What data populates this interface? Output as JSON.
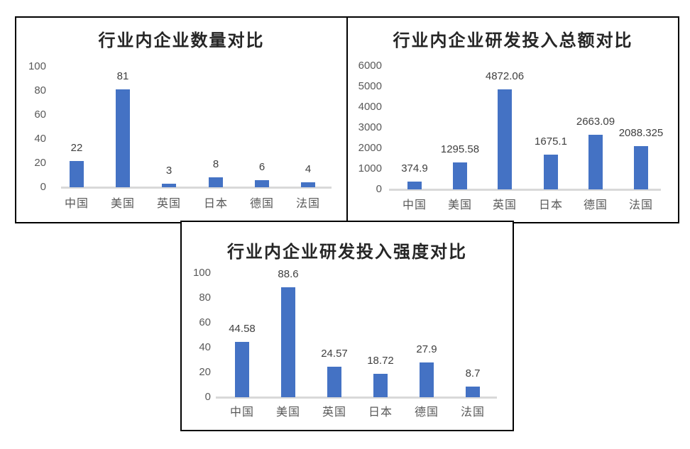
{
  "page": {
    "background": "#ffffff",
    "bar_color": "#4472C4",
    "axis_color": "#D9D9D9",
    "tick_label_color": "#595959",
    "data_label_color": "#404040",
    "title_color": "#262626"
  },
  "chart_data": [
    {
      "type": "bar",
      "title": "行业内企业数量对比",
      "categories": [
        "中国",
        "美国",
        "英国",
        "日本",
        "德国",
        "法国"
      ],
      "values": [
        22,
        81,
        3,
        8,
        6,
        4
      ],
      "data_labels": [
        "22",
        "81",
        "3",
        "8",
        "6",
        "4"
      ],
      "y_tick_labels": [
        "0",
        "20",
        "40",
        "60",
        "80",
        "100"
      ],
      "y_tick_values": [
        0,
        20,
        40,
        60,
        80,
        100
      ],
      "ylim": [
        0,
        100
      ],
      "grid": false,
      "legend": "none",
      "bar_color": "#4472C4"
    },
    {
      "type": "bar",
      "title": "行业内企业研发投入总额对比",
      "categories": [
        "中国",
        "美国",
        "英国",
        "日本",
        "德国",
        "法国"
      ],
      "values": [
        374.9,
        1295.58,
        4872.06,
        1675.1,
        2663.09,
        2088.325
      ],
      "data_labels": [
        "374.9",
        "1295.58",
        "4872.06",
        "1675.1",
        "2663.09",
        "2088.325"
      ],
      "y_tick_labels": [
        "0",
        "1000",
        "2000",
        "3000",
        "4000",
        "5000",
        "6000"
      ],
      "y_tick_values": [
        0,
        1000,
        2000,
        3000,
        4000,
        5000,
        6000
      ],
      "ylim": [
        0,
        6000
      ],
      "grid": false,
      "legend": "none",
      "bar_color": "#4472C4"
    },
    {
      "type": "bar",
      "title": "行业内企业研发投入强度对比",
      "categories": [
        "中国",
        "美国",
        "英国",
        "日本",
        "德国",
        "法国"
      ],
      "values": [
        44.58,
        88.6,
        24.57,
        18.72,
        27.9,
        8.7
      ],
      "data_labels": [
        "44.58",
        "88.6",
        "24.57",
        "18.72",
        "27.9",
        "8.7"
      ],
      "y_tick_labels": [
        "0",
        "20",
        "40",
        "60",
        "80",
        "100"
      ],
      "y_tick_values": [
        0,
        20,
        40,
        60,
        80,
        100
      ],
      "ylim": [
        0,
        100
      ],
      "grid": false,
      "legend": "none",
      "bar_color": "#4472C4"
    }
  ]
}
